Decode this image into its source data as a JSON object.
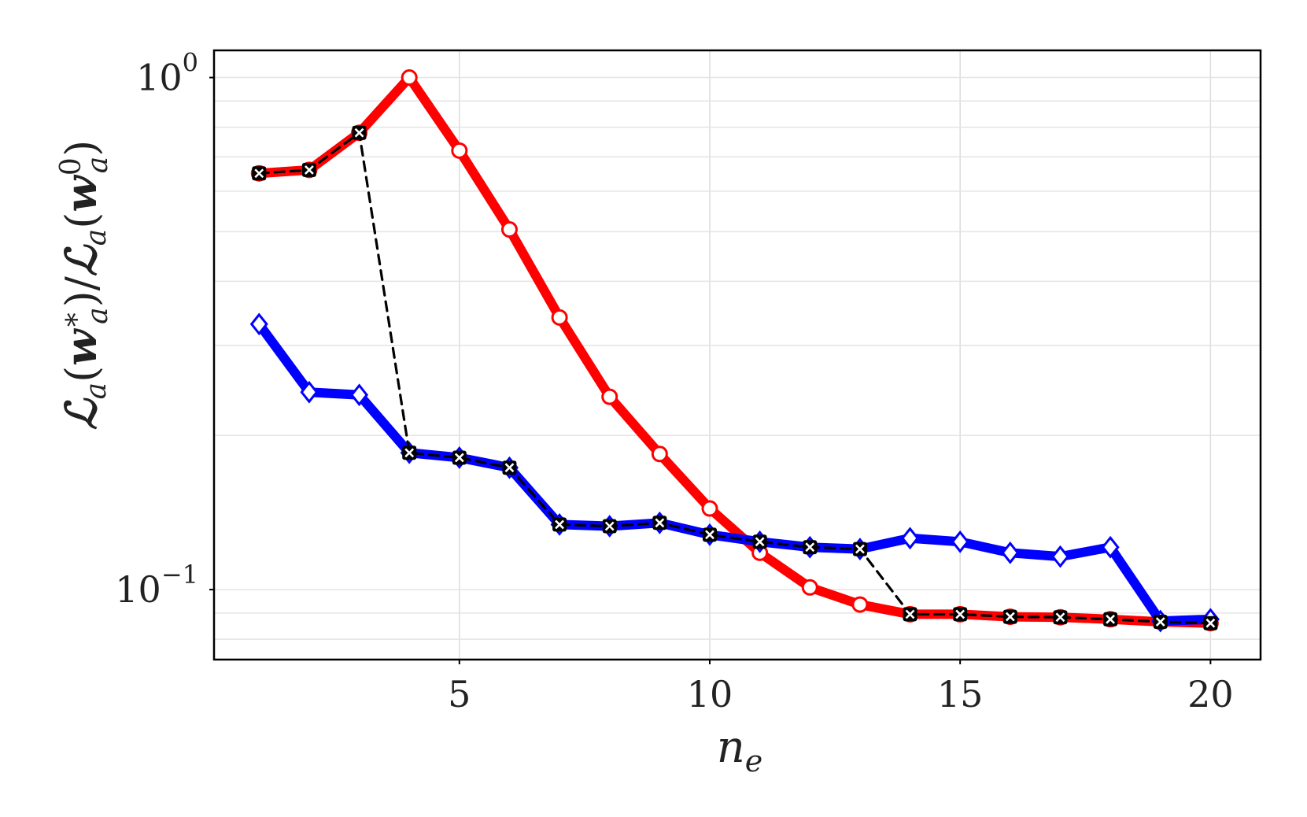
{
  "chart_data": {
    "type": "line",
    "xlabel": "n_e",
    "ylabel": "L_a(w_a*)/L_a(w_a^0)",
    "yscale": "log",
    "xlim": [
      0.1,
      21.0
    ],
    "ylim": [
      0.073,
      1.13
    ],
    "xticks": [
      5,
      10,
      15,
      20
    ],
    "yticks": [
      {
        "value": 1.0,
        "label": "10^0"
      },
      {
        "value": 0.1,
        "label": "10^-1"
      }
    ],
    "grid": true,
    "legend": "none",
    "x": [
      1,
      2,
      3,
      4,
      5,
      6,
      7,
      8,
      9,
      10,
      11,
      12,
      13,
      14,
      15,
      16,
      17,
      18,
      19,
      20
    ],
    "series": [
      {
        "color": "#ff0000",
        "marker": "circle",
        "values": [
          0.65,
          0.66,
          0.78,
          1.0,
          0.72,
          0.505,
          0.34,
          0.238,
          0.184,
          0.144,
          0.118,
          0.101,
          0.0935,
          0.0895,
          0.0895,
          0.0885,
          0.0883,
          0.0875,
          0.0865,
          0.086
        ]
      },
      {
        "color": "#0000ff",
        "marker": "diamond",
        "values": [
          0.33,
          0.243,
          0.24,
          0.185,
          0.181,
          0.173,
          0.134,
          0.133,
          0.135,
          0.128,
          0.124,
          0.121,
          0.12,
          0.126,
          0.124,
          0.118,
          0.116,
          0.121,
          0.0868,
          0.0875
        ]
      },
      {
        "color": "#000000",
        "marker": "x",
        "dashed": true,
        "values": [
          0.65,
          0.66,
          0.78,
          0.185,
          0.181,
          0.173,
          0.134,
          0.133,
          0.135,
          0.128,
          0.124,
          0.121,
          0.12,
          0.0895,
          0.0895,
          0.0885,
          0.0883,
          0.0875,
          0.0865,
          0.086
        ]
      }
    ]
  }
}
